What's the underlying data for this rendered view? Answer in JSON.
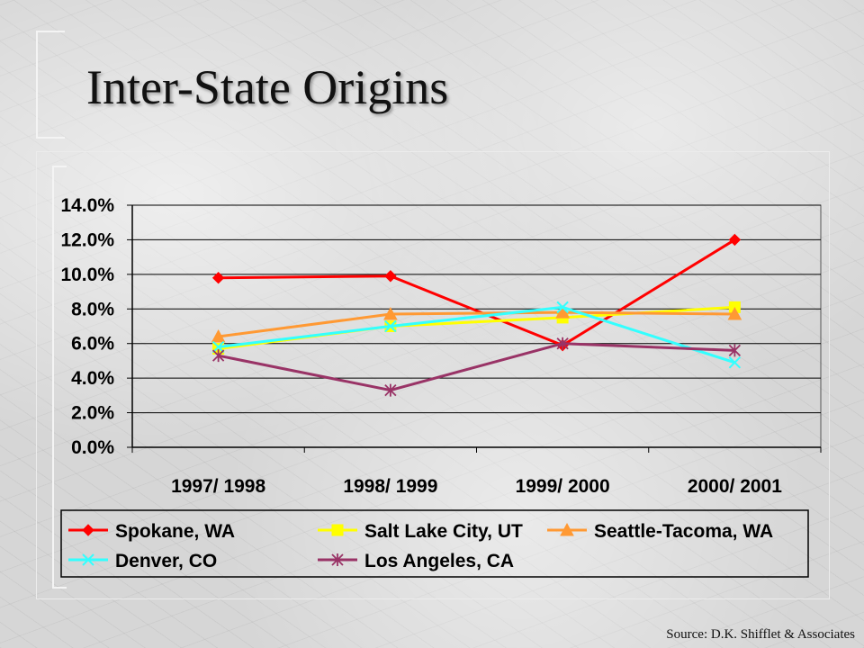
{
  "slide": {
    "title": "Inter-State Origins",
    "source": "Source: D.K. Shifflet & Associates"
  },
  "chart_data": {
    "type": "line",
    "categories": [
      "1997/ 1998",
      "1998/ 1999",
      "1999/ 2000",
      "2000/ 2001"
    ],
    "ylim": [
      0,
      14
    ],
    "yticks": [
      "0.0%",
      "2.0%",
      "4.0%",
      "6.0%",
      "8.0%",
      "10.0%",
      "12.0%",
      "14.0%"
    ],
    "grid": true,
    "legend_position": "bottom",
    "series": [
      {
        "name": "Spokane, WA",
        "values": [
          9.8,
          9.9,
          5.9,
          12.0
        ],
        "color": "#ff0000",
        "marker": "diamond"
      },
      {
        "name": "Salt Lake City, UT",
        "values": [
          5.7,
          7.0,
          7.5,
          8.1
        ],
        "color": "#ffff00",
        "marker": "square"
      },
      {
        "name": "Seattle-Tacoma, WA",
        "values": [
          6.4,
          7.7,
          7.8,
          7.7
        ],
        "color": "#ff9933",
        "marker": "triangle"
      },
      {
        "name": "Denver, CO",
        "values": [
          5.8,
          7.0,
          8.1,
          4.9
        ],
        "color": "#33ffff",
        "marker": "x"
      },
      {
        "name": "Los Angeles, CA",
        "values": [
          5.3,
          3.3,
          6.0,
          5.6
        ],
        "color": "#993366",
        "marker": "asterisk"
      }
    ]
  }
}
